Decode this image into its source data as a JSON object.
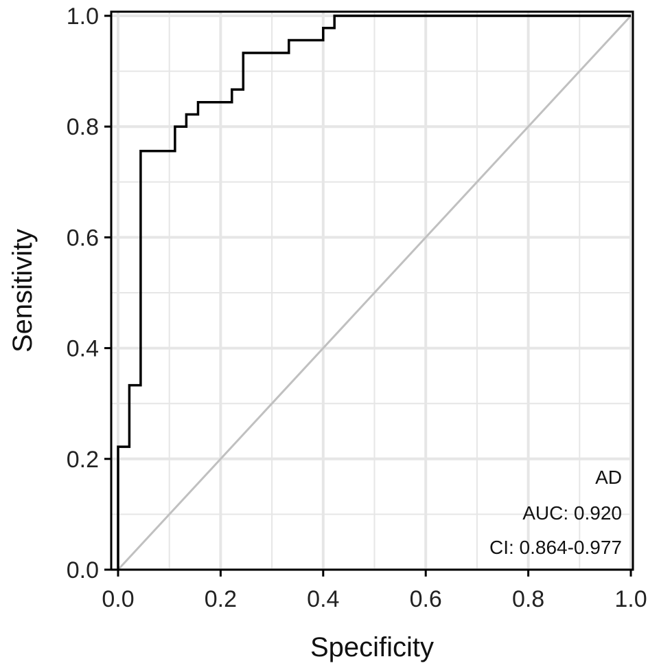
{
  "chart_data": {
    "type": "line",
    "xlabel": "Specificity",
    "ylabel": "Sensitivity",
    "xlim": [
      0,
      1
    ],
    "ylim": [
      0,
      1
    ],
    "x_ticks": [
      "0.0",
      "0.2",
      "0.4",
      "0.6",
      "0.8",
      "1.0"
    ],
    "y_ticks": [
      "0.0",
      "0.2",
      "0.4",
      "0.6",
      "0.8",
      "1.0"
    ],
    "grid": true,
    "annotations": [
      "AD",
      "AUC: 0.920",
      "CI: 0.864-0.977"
    ],
    "series": [
      {
        "color": "#000000",
        "x": [
          0.0,
          0.0,
          0.022,
          0.022,
          0.044,
          0.044,
          0.111,
          0.111,
          0.133,
          0.133,
          0.156,
          0.156,
          0.222,
          0.222,
          0.244,
          0.244,
          0.333,
          0.333,
          0.4,
          0.4,
          0.422,
          0.422,
          1.0
        ],
        "y": [
          0.0,
          0.222,
          0.222,
          0.333,
          0.333,
          0.756,
          0.756,
          0.8,
          0.8,
          0.822,
          0.822,
          0.844,
          0.844,
          0.867,
          0.867,
          0.933,
          0.933,
          0.956,
          0.956,
          0.978,
          0.978,
          1.0,
          1.0
        ]
      },
      {
        "color": "#c0c0c0",
        "x": [
          0.0,
          1.0
        ],
        "y": [
          0.0,
          1.0
        ]
      }
    ]
  }
}
